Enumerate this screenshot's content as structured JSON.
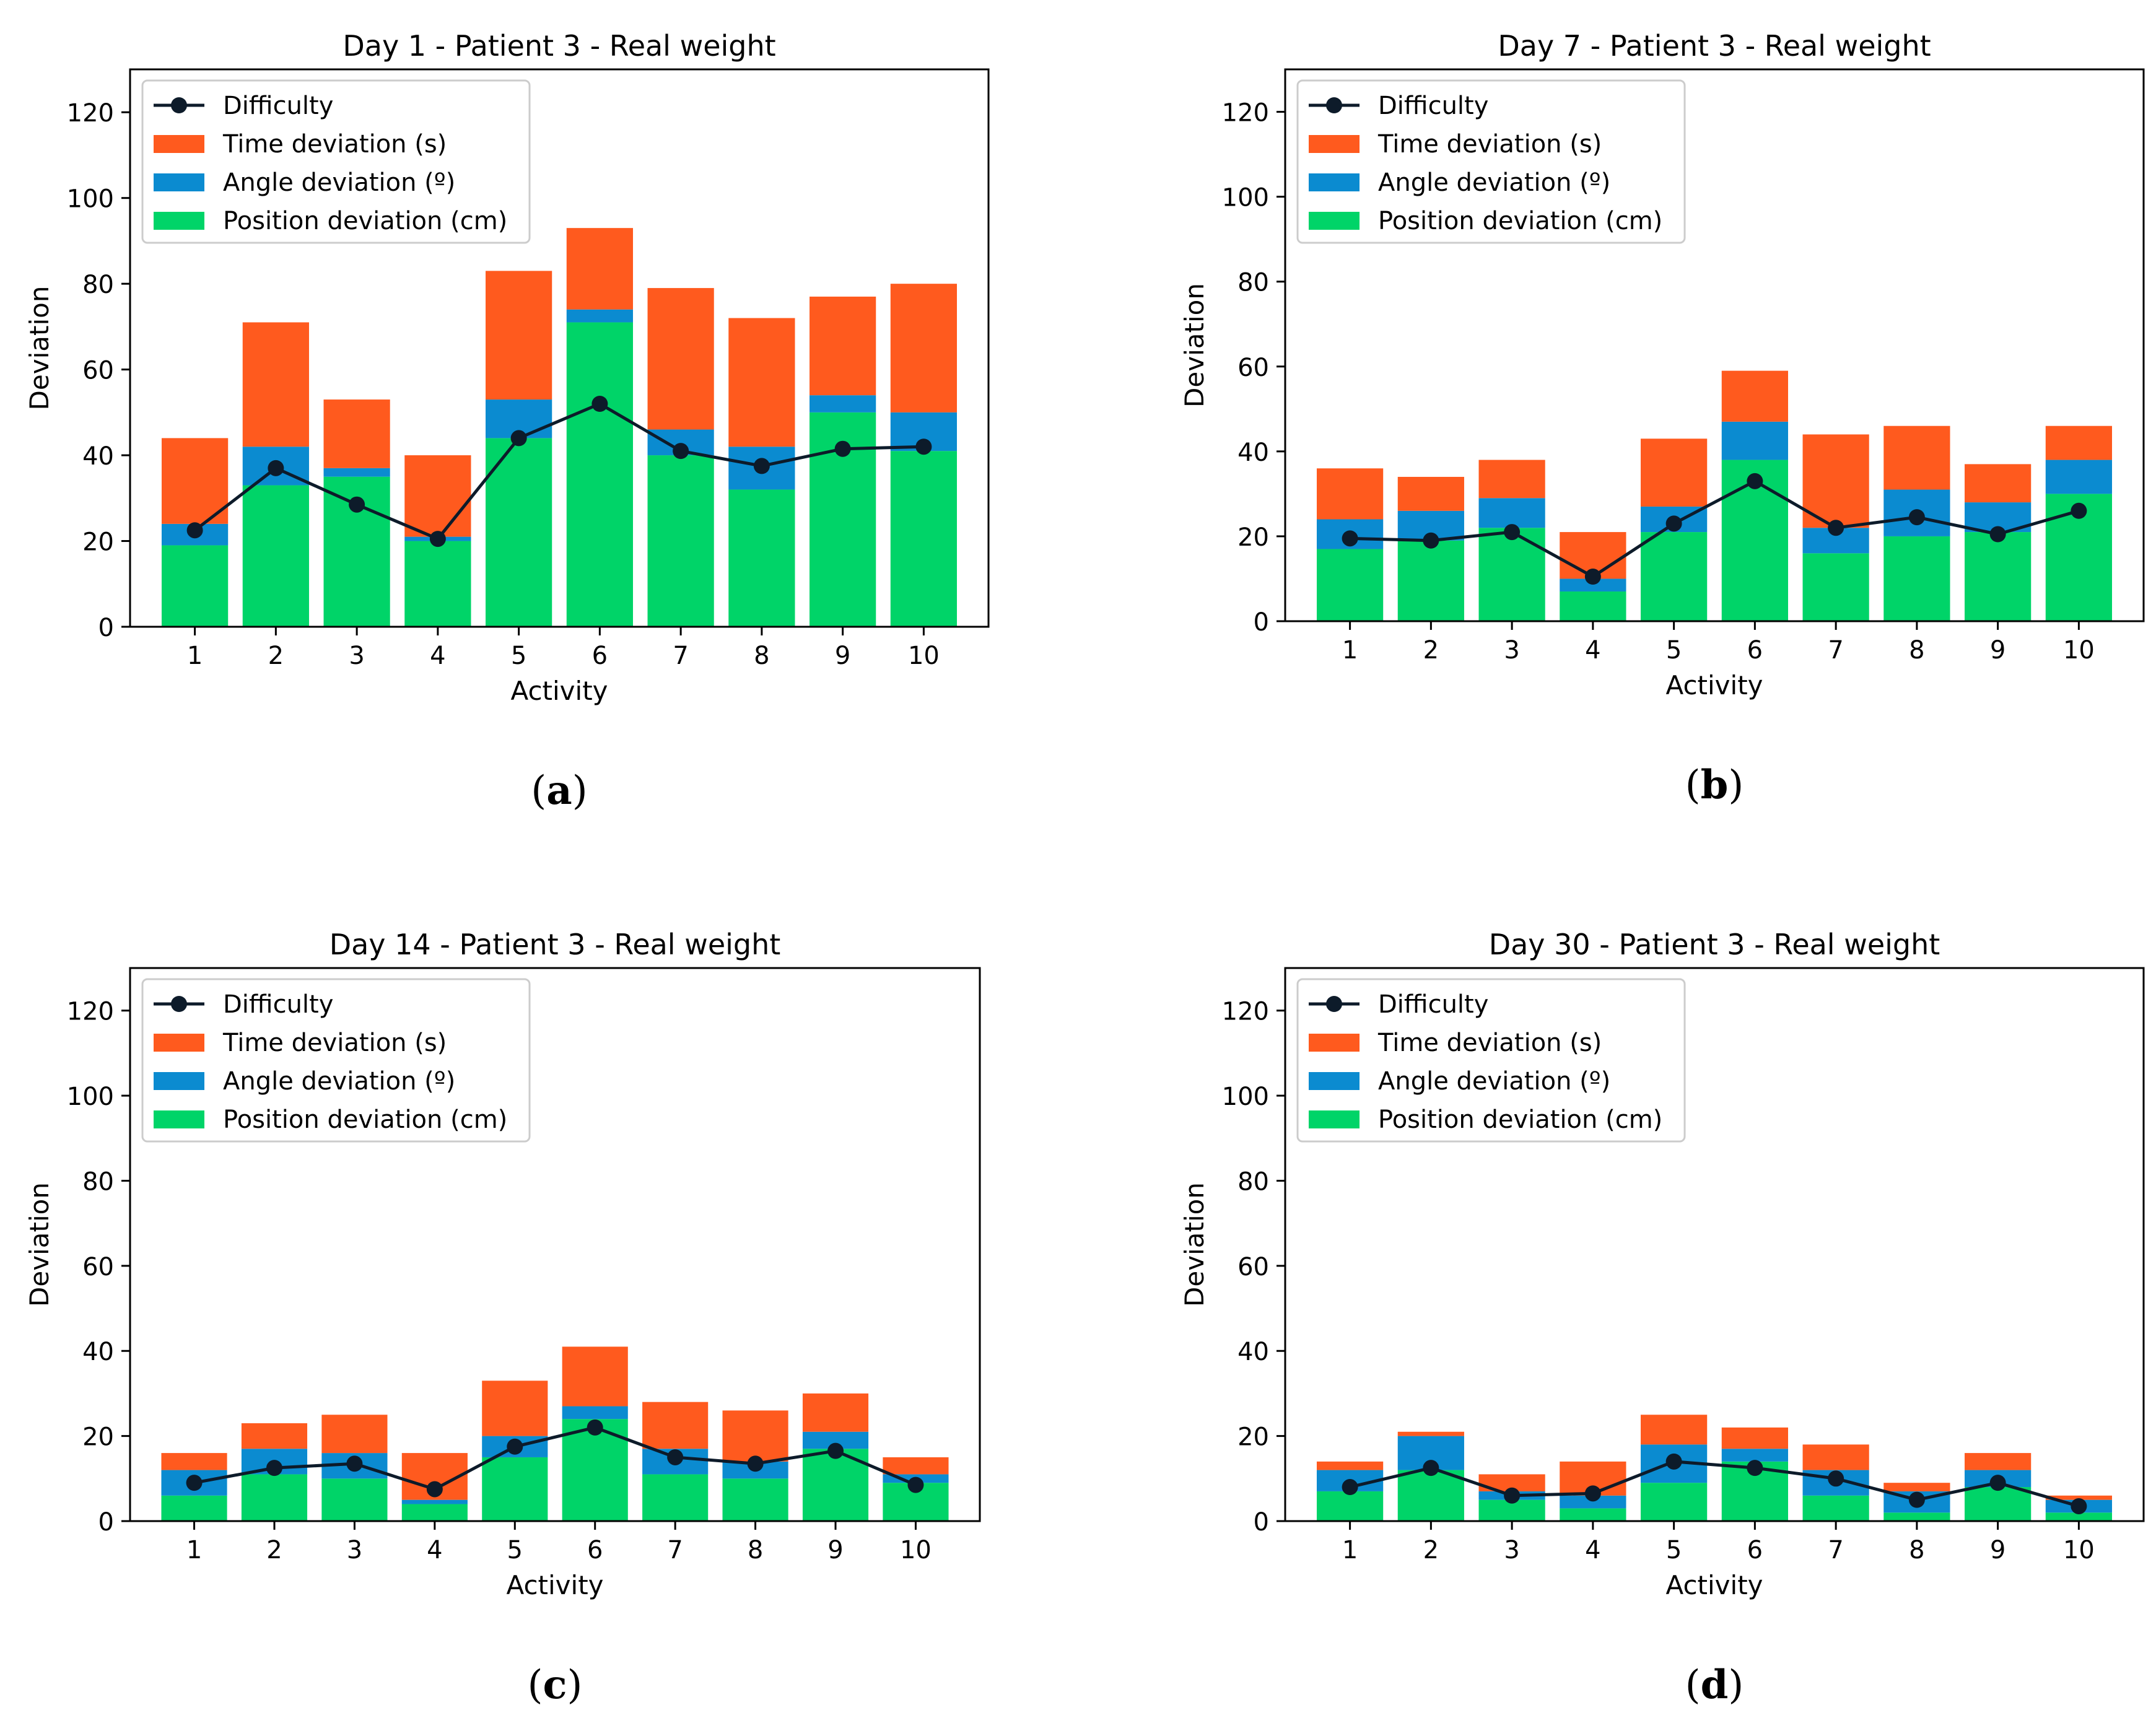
{
  "colors": {
    "time": "#FF5A1E",
    "angle": "#0B8BD0",
    "position": "#00D468",
    "difficulty": "#0D1B2A",
    "axis": "#000000"
  },
  "chart_data": [
    {
      "type": "bar",
      "stacked": true,
      "caption": "(a)",
      "caption_letter": "a",
      "title": "Day 1 - Patient 3 - Real weight",
      "xlabel": "Activity",
      "ylabel": "Deviation",
      "ylim": [
        0,
        130
      ],
      "yticks": [
        0,
        20,
        40,
        60,
        80,
        100,
        120
      ],
      "categories": [
        "1",
        "2",
        "3",
        "4",
        "5",
        "6",
        "7",
        "8",
        "9",
        "10"
      ],
      "legend_position": "upper-left",
      "grid": false,
      "series": [
        {
          "name": "Position deviation (cm)",
          "kind": "bar",
          "color_key": "position",
          "values": [
            19,
            33,
            35,
            20,
            44,
            71,
            40,
            32,
            50,
            41
          ]
        },
        {
          "name": "Angle deviation (º)",
          "kind": "bar",
          "color_key": "angle",
          "values": [
            5,
            9,
            2,
            1,
            9,
            3,
            6,
            10,
            4,
            9
          ]
        },
        {
          "name": "Time deviation (s)",
          "kind": "bar",
          "color_key": "time",
          "values": [
            20,
            29,
            16,
            19,
            30,
            19,
            33,
            30,
            23,
            30
          ]
        },
        {
          "name": "Difficulty",
          "kind": "line",
          "color_key": "difficulty",
          "values": [
            22.5,
            37,
            28.5,
            20.5,
            44,
            52,
            41,
            37.5,
            41.5,
            42
          ]
        }
      ]
    },
    {
      "type": "bar",
      "stacked": true,
      "caption": "(b)",
      "caption_letter": "b",
      "title": "Day 7 - Patient 3 - Real weight",
      "xlabel": "Activity",
      "ylabel": "Deviation",
      "ylim": [
        0,
        130
      ],
      "yticks": [
        0,
        20,
        40,
        60,
        80,
        100,
        120
      ],
      "categories": [
        "1",
        "2",
        "3",
        "4",
        "5",
        "6",
        "7",
        "8",
        "9",
        "10"
      ],
      "legend_position": "upper-left",
      "grid": false,
      "series": [
        {
          "name": "Position deviation (cm)",
          "kind": "bar",
          "color_key": "position",
          "values": [
            17,
            19,
            22,
            7,
            21,
            38,
            16,
            20,
            21,
            30
          ]
        },
        {
          "name": "Angle deviation (º)",
          "kind": "bar",
          "color_key": "angle",
          "values": [
            7,
            7,
            7,
            3,
            6,
            9,
            6,
            11,
            7,
            8
          ]
        },
        {
          "name": "Time deviation (s)",
          "kind": "bar",
          "color_key": "time",
          "values": [
            12,
            8,
            9,
            11,
            16,
            12,
            22,
            15,
            9,
            8
          ]
        },
        {
          "name": "Difficulty",
          "kind": "line",
          "color_key": "difficulty",
          "values": [
            19.5,
            19,
            21,
            10.5,
            23,
            33,
            22,
            24.5,
            20.5,
            26
          ]
        }
      ]
    },
    {
      "type": "bar",
      "stacked": true,
      "caption": "(c)",
      "caption_letter": "c",
      "title": "Day 14 - Patient 3 - Real weight",
      "xlabel": "Activity",
      "ylabel": "Deviation",
      "ylim": [
        0,
        130
      ],
      "yticks": [
        0,
        20,
        40,
        60,
        80,
        100,
        120
      ],
      "categories": [
        "1",
        "2",
        "3",
        "4",
        "5",
        "6",
        "7",
        "8",
        "9",
        "10"
      ],
      "legend_position": "upper-left",
      "grid": false,
      "series": [
        {
          "name": "Position deviation (cm)",
          "kind": "bar",
          "color_key": "position",
          "values": [
            6,
            11,
            10,
            4,
            15,
            24,
            11,
            10,
            17,
            9
          ]
        },
        {
          "name": "Angle deviation (º)",
          "kind": "bar",
          "color_key": "angle",
          "values": [
            6,
            6,
            6,
            1,
            5,
            3,
            6,
            4,
            4,
            2
          ]
        },
        {
          "name": "Time deviation (s)",
          "kind": "bar",
          "color_key": "time",
          "values": [
            4,
            6,
            9,
            11,
            13,
            14,
            11,
            12,
            9,
            4
          ]
        },
        {
          "name": "Difficulty",
          "kind": "line",
          "color_key": "difficulty",
          "values": [
            9,
            12.5,
            13.5,
            7.5,
            17.5,
            22,
            15,
            13.5,
            16.5,
            8.5
          ]
        }
      ]
    },
    {
      "type": "bar",
      "stacked": true,
      "caption": "(d)",
      "caption_letter": "d",
      "title": "Day 30 - Patient 3 - Real weight",
      "xlabel": "Activity",
      "ylabel": "Deviation",
      "ylim": [
        0,
        130
      ],
      "yticks": [
        0,
        20,
        40,
        60,
        80,
        100,
        120
      ],
      "categories": [
        "1",
        "2",
        "3",
        "4",
        "5",
        "6",
        "7",
        "8",
        "9",
        "10"
      ],
      "legend_position": "upper-left",
      "grid": false,
      "series": [
        {
          "name": "Position deviation (cm)",
          "kind": "bar",
          "color_key": "position",
          "values": [
            7,
            12,
            5,
            3,
            9,
            14,
            6,
            2,
            8,
            2
          ]
        },
        {
          "name": "Angle deviation (º)",
          "kind": "bar",
          "color_key": "angle",
          "values": [
            5,
            8,
            2,
            3,
            9,
            3,
            6,
            5,
            4,
            3
          ]
        },
        {
          "name": "Time deviation (s)",
          "kind": "bar",
          "color_key": "time",
          "values": [
            2,
            1,
            4,
            8,
            7,
            5,
            6,
            2,
            4,
            1
          ]
        },
        {
          "name": "Difficulty",
          "kind": "line",
          "color_key": "difficulty",
          "values": [
            8,
            12.5,
            6,
            6.5,
            14,
            12.5,
            10,
            5,
            9,
            3.5
          ]
        }
      ]
    }
  ]
}
